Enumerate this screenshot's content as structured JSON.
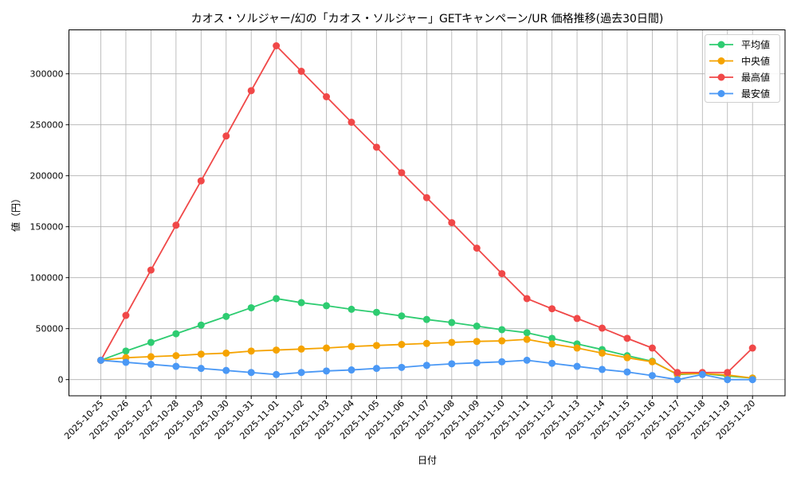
{
  "chart_data": {
    "type": "line",
    "title": "カオス・ソルジャー/幻の「カオス・ソルジャー」GETキャンペーン/UR 価格推移(過去30日間)",
    "xlabel": "日付",
    "ylabel": "値（円）",
    "ylim": [
      -16000,
      345000
    ],
    "yticks": [
      0,
      50000,
      100000,
      150000,
      200000,
      250000,
      300000
    ],
    "grid": true,
    "legend_position": "upper right",
    "categories": [
      "2025-10-25",
      "2025-10-26",
      "2025-10-27",
      "2025-10-28",
      "2025-10-29",
      "2025-10-30",
      "2025-10-31",
      "2025-11-01",
      "2025-11-02",
      "2025-11-03",
      "2025-11-04",
      "2025-11-05",
      "2025-11-06",
      "2025-11-07",
      "2025-11-08",
      "2025-11-09",
      "2025-11-10",
      "2025-11-11",
      "2025-11-12",
      "2025-11-13",
      "2025-11-14",
      "2025-11-15",
      "2025-11-16",
      "2025-11-17",
      "2025-11-18",
      "2025-11-19",
      "2025-11-20"
    ],
    "series": [
      {
        "name": "平均値",
        "color": "#2ecc71",
        "values": [
          19000,
          28000,
          36500,
          45000,
          53500,
          62000,
          70500,
          79500,
          75500,
          72500,
          69000,
          66000,
          62500,
          59000,
          56000,
          52500,
          49000,
          46000,
          40500,
          35000,
          29500,
          23500,
          18000,
          5000,
          6000,
          3500,
          1500
        ]
      },
      {
        "name": "中央値",
        "color": "#f5a300",
        "values": [
          19000,
          21500,
          22500,
          23500,
          25000,
          26000,
          28000,
          29000,
          30000,
          31000,
          32500,
          33500,
          34500,
          35500,
          36500,
          37500,
          38000,
          39500,
          35000,
          31000,
          26000,
          21500,
          17500,
          5500,
          6000,
          4500,
          1500
        ]
      },
      {
        "name": "最高値",
        "color": "#f04848",
        "values": [
          19000,
          63000,
          107500,
          151500,
          195000,
          239000,
          283500,
          327500,
          302500,
          277500,
          252500,
          228000,
          203000,
          178500,
          154000,
          129000,
          104000,
          79500,
          69500,
          60000,
          50500,
          40500,
          31000,
          7000,
          7000,
          7000,
          31000
        ]
      },
      {
        "name": "最安値",
        "color": "#4a98f5",
        "values": [
          19000,
          17000,
          15000,
          13000,
          11000,
          9000,
          7000,
          5000,
          7000,
          8500,
          9500,
          11000,
          12000,
          14000,
          15500,
          16500,
          17500,
          19000,
          16000,
          13000,
          10000,
          7500,
          4000,
          0,
          5000,
          0,
          0
        ]
      }
    ]
  }
}
